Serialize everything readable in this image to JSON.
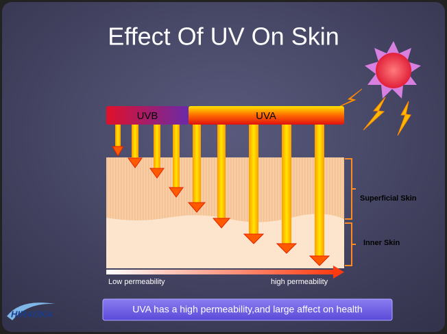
{
  "slide": {
    "title": "Effect Of UV On Skin",
    "bands": {
      "uvb": "UVB",
      "uva": "UVA"
    },
    "layers": {
      "superficial": "Superficial Skin",
      "inner": "Inner Skin"
    },
    "permeability": {
      "low": "Low permeability",
      "high": "high permeability"
    },
    "caption": "UVA has a high permeability,and large affect on health",
    "logo": "HIRAOKA"
  }
}
